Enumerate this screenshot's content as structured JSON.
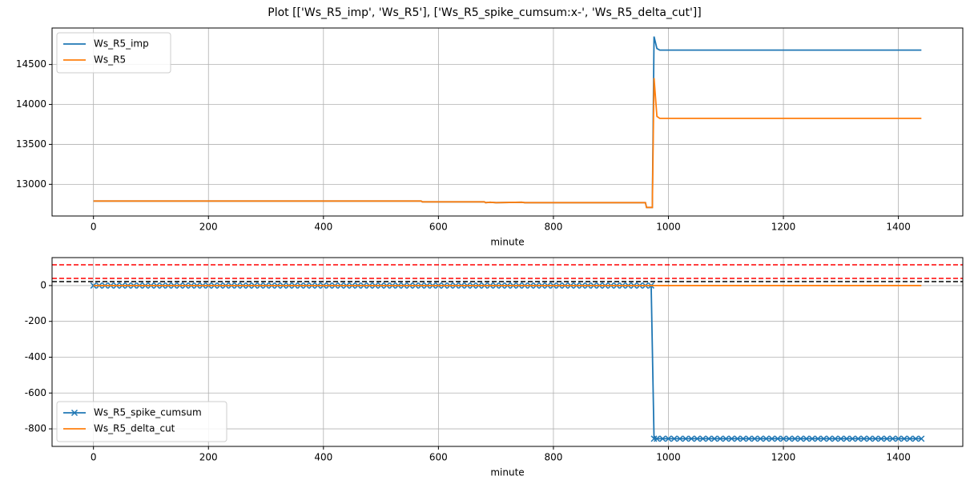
{
  "chart_data": [
    {
      "type": "line",
      "title": "Plot [['Ws_R5_imp', 'Ws_R5'], ['Ws_R5_spike_cumsum:x-', 'Ws_R5_delta_cut']]",
      "xlabel": "minute",
      "xlim": [
        -72,
        1512
      ],
      "xticks": [
        0,
        200,
        400,
        600,
        800,
        1000,
        1200,
        1400
      ],
      "ylim": [
        12603,
        14957
      ],
      "yticks": [
        13000,
        13500,
        14000,
        14500
      ],
      "grid": true,
      "legend": "upper-left",
      "series": [
        {
          "name": "Ws_R5_imp",
          "color": "#1f77b4",
          "x": [
            0,
            570,
            572,
            680,
            682,
            690,
            700,
            745,
            750,
            960,
            962,
            972,
            975,
            980,
            985,
            1440
          ],
          "values": [
            12790,
            12790,
            12780,
            12780,
            12770,
            12775,
            12770,
            12775,
            12770,
            12770,
            12710,
            12710,
            14850,
            14700,
            14680,
            14680
          ]
        },
        {
          "name": "Ws_R5",
          "color": "#ff7f0e",
          "x": [
            0,
            570,
            572,
            680,
            682,
            690,
            700,
            745,
            750,
            960,
            962,
            972,
            975,
            980,
            985,
            1440
          ],
          "values": [
            12790,
            12790,
            12780,
            12780,
            12770,
            12775,
            12770,
            12775,
            12770,
            12770,
            12710,
            12710,
            14330,
            13850,
            13825,
            13825
          ]
        }
      ]
    },
    {
      "type": "line",
      "xlabel": "minute",
      "xlim": [
        -72,
        1512
      ],
      "xticks": [
        0,
        200,
        400,
        600,
        800,
        1000,
        1200,
        1400
      ],
      "ylim": [
        -898,
        156
      ],
      "yticks": [
        -800,
        -600,
        -400,
        -200,
        0
      ],
      "grid": true,
      "legend": "lower-left",
      "hlines": [
        {
          "y": 116,
          "color": "red"
        },
        {
          "y": 40,
          "color": "red"
        },
        {
          "y": 22,
          "color": "black"
        }
      ],
      "series": [
        {
          "name": "Ws_R5_spike_cumsum",
          "color": "#1f77b4",
          "marker": "x",
          "x": [
            0,
            10,
            20,
            30,
            40,
            50,
            60,
            70,
            80,
            90,
            100,
            110,
            120,
            130,
            140,
            150,
            160,
            170,
            180,
            190,
            200,
            210,
            220,
            230,
            240,
            250,
            260,
            270,
            280,
            290,
            300,
            310,
            320,
            330,
            340,
            350,
            360,
            370,
            380,
            390,
            400,
            410,
            420,
            430,
            440,
            450,
            460,
            470,
            480,
            490,
            500,
            510,
            520,
            530,
            540,
            550,
            560,
            570,
            580,
            590,
            600,
            610,
            620,
            630,
            640,
            650,
            660,
            670,
            680,
            690,
            700,
            710,
            720,
            730,
            740,
            750,
            760,
            770,
            780,
            790,
            800,
            810,
            820,
            830,
            840,
            850,
            860,
            870,
            880,
            890,
            900,
            910,
            920,
            930,
            940,
            950,
            960,
            970,
            975,
            980,
            990,
            1000,
            1010,
            1020,
            1030,
            1040,
            1050,
            1060,
            1070,
            1080,
            1090,
            1100,
            1110,
            1120,
            1130,
            1140,
            1150,
            1160,
            1170,
            1180,
            1190,
            1200,
            1210,
            1220,
            1230,
            1240,
            1250,
            1260,
            1270,
            1280,
            1290,
            1300,
            1310,
            1320,
            1330,
            1340,
            1350,
            1360,
            1370,
            1380,
            1390,
            1400,
            1410,
            1420,
            1430,
            1440
          ],
          "values": [
            0,
            0,
            0,
            0,
            0,
            0,
            0,
            0,
            0,
            0,
            0,
            0,
            0,
            0,
            0,
            0,
            0,
            0,
            0,
            0,
            0,
            0,
            0,
            0,
            0,
            0,
            0,
            0,
            0,
            0,
            0,
            0,
            0,
            0,
            0,
            0,
            0,
            0,
            0,
            0,
            0,
            0,
            0,
            0,
            0,
            0,
            0,
            0,
            0,
            0,
            0,
            0,
            0,
            0,
            0,
            0,
            0,
            0,
            0,
            0,
            0,
            0,
            0,
            0,
            0,
            0,
            0,
            0,
            0,
            0,
            0,
            0,
            0,
            0,
            0,
            0,
            0,
            0,
            0,
            0,
            0,
            0,
            0,
            0,
            0,
            0,
            0,
            0,
            0,
            0,
            0,
            0,
            0,
            0,
            0,
            0,
            0,
            0,
            -855,
            -855,
            -855,
            -855,
            -855,
            -855,
            -855,
            -855,
            -855,
            -855,
            -855,
            -855,
            -855,
            -855,
            -855,
            -855,
            -855,
            -855,
            -855,
            -855,
            -855,
            -855,
            -855,
            -855,
            -855,
            -855,
            -855,
            -855,
            -855,
            -855,
            -855,
            -855,
            -855,
            -855,
            -855,
            -855,
            -855,
            -855,
            -855,
            -855,
            -855,
            -855,
            -855,
            -855,
            -855,
            -855,
            -855,
            -855
          ]
        },
        {
          "name": "Ws_R5_delta_cut",
          "color": "#ff7f0e",
          "x": [
            0,
            1440
          ],
          "values": [
            0,
            0
          ]
        }
      ]
    }
  ]
}
